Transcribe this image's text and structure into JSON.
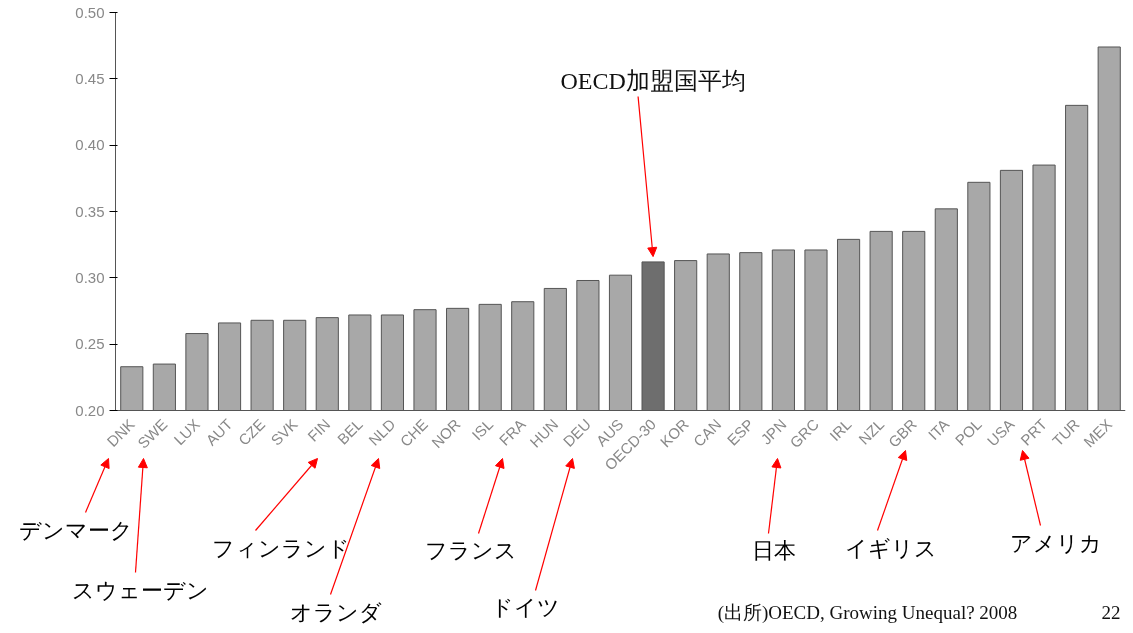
{
  "chart_data": {
    "type": "bar",
    "categories": [
      "DNK",
      "SWE",
      "LUX",
      "AUT",
      "CZE",
      "SVK",
      "FIN",
      "BEL",
      "NLD",
      "CHE",
      "NOR",
      "ISL",
      "FRA",
      "HUN",
      "DEU",
      "AUS",
      "OECD-30",
      "KOR",
      "CAN",
      "ESP",
      "JPN",
      "GRC",
      "IRL",
      "NZL",
      "GBR",
      "ITA",
      "POL",
      "USA",
      "PRT",
      "TUR",
      "MEX"
    ],
    "values": [
      0.233,
      0.235,
      0.258,
      0.266,
      0.268,
      0.268,
      0.27,
      0.272,
      0.272,
      0.276,
      0.277,
      0.28,
      0.282,
      0.292,
      0.298,
      0.302,
      0.312,
      0.313,
      0.318,
      0.319,
      0.321,
      0.321,
      0.329,
      0.335,
      0.335,
      0.352,
      0.372,
      0.381,
      0.385,
      0.43,
      0.474
    ],
    "colors": [
      "#a8a8a8",
      "#a8a8a8",
      "#a8a8a8",
      "#a8a8a8",
      "#a8a8a8",
      "#a8a8a8",
      "#a8a8a8",
      "#a8a8a8",
      "#a8a8a8",
      "#a8a8a8",
      "#a8a8a8",
      "#a8a8a8",
      "#a8a8a8",
      "#a8a8a8",
      "#a8a8a8",
      "#a8a8a8",
      "#6e6e6e",
      "#a8a8a8",
      "#a8a8a8",
      "#a8a8a8",
      "#a8a8a8",
      "#a8a8a8",
      "#a8a8a8",
      "#a8a8a8",
      "#a8a8a8",
      "#a8a8a8",
      "#a8a8a8",
      "#a8a8a8",
      "#a8a8a8",
      "#a8a8a8",
      "#a8a8a8"
    ],
    "ylim": [
      0.2,
      0.5
    ],
    "yticks": [
      {
        "value": 0.2,
        "label": "0.20"
      },
      {
        "value": 0.25,
        "label": "0.25"
      },
      {
        "value": 0.3,
        "label": "0.30"
      },
      {
        "value": 0.35,
        "label": "0.35"
      },
      {
        "value": 0.4,
        "label": "0.40"
      },
      {
        "value": 0.45,
        "label": "0.45"
      },
      {
        "value": 0.5,
        "label": "0.50"
      }
    ],
    "grid": false,
    "annotations": [
      {
        "text": "OECD加盟国平均",
        "x": "OECD-30",
        "y": 0.312
      },
      "デンマーク",
      "スウェーデン",
      "フィンランド",
      "オランダ",
      "フランス",
      "ドイツ",
      "日本",
      "イギリス",
      "アメリカ",
      "(出所)OECD, Growing Unequal? 2008",
      "22"
    ]
  }
}
